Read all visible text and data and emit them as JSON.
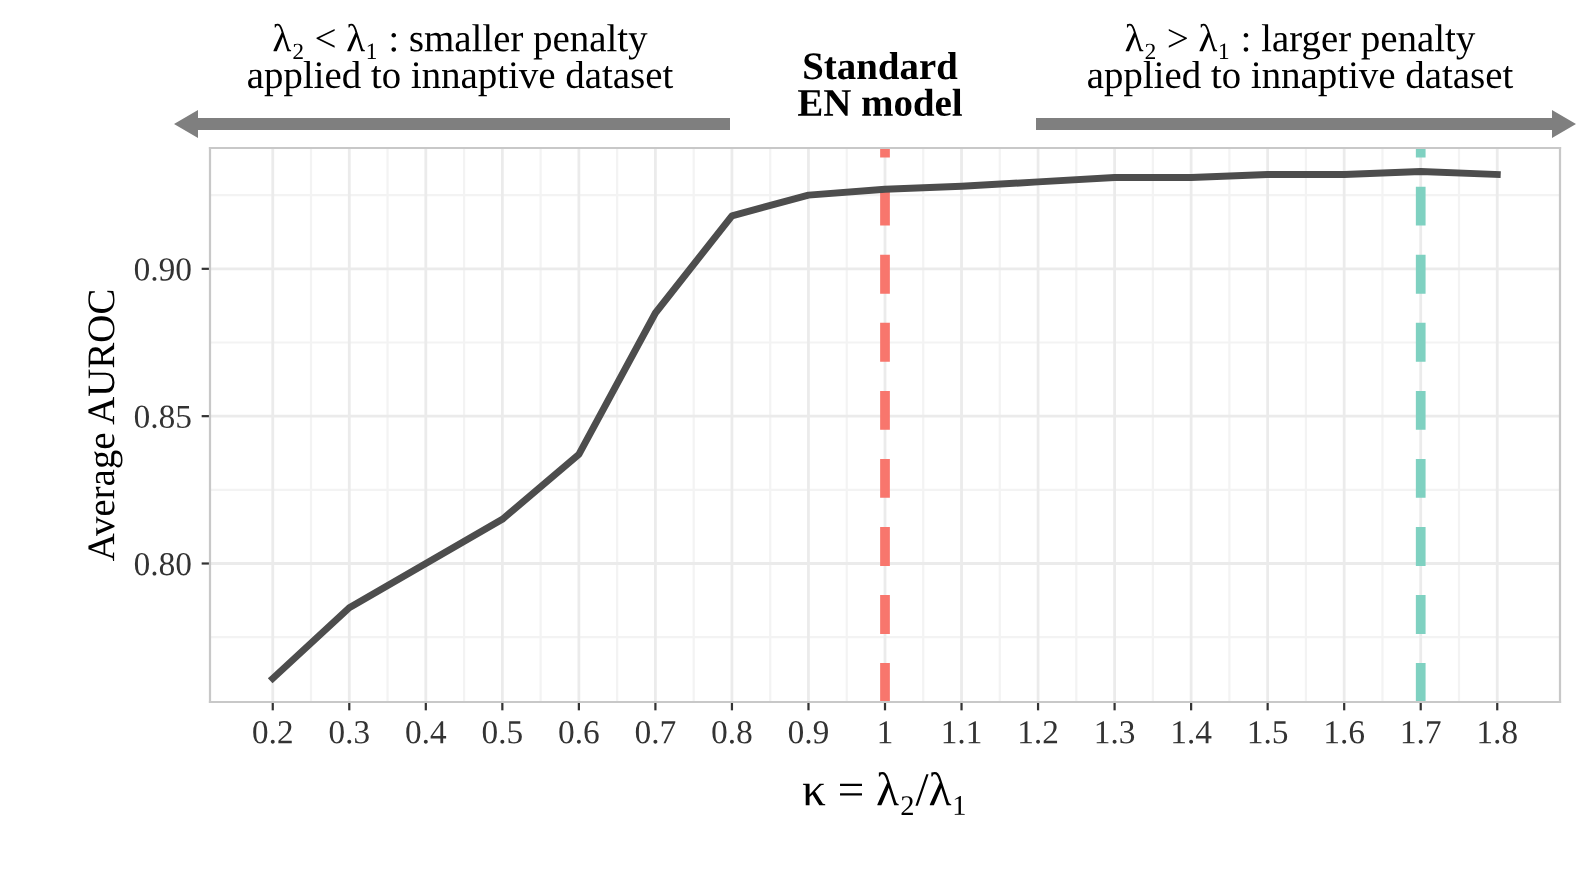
{
  "chart_data": {
    "type": "line",
    "x": [
      0.2,
      0.3,
      0.4,
      0.5,
      0.6,
      0.7,
      0.8,
      0.9,
      1.0,
      1.1,
      1.2,
      1.3,
      1.4,
      1.5,
      1.6,
      1.7,
      1.8
    ],
    "series": [
      {
        "color": "#4d4d4d",
        "values": [
          0.761,
          0.785,
          0.8,
          0.815,
          0.837,
          0.885,
          0.918,
          0.925,
          0.927,
          0.928,
          0.9295,
          0.931,
          0.931,
          0.932,
          0.932,
          0.933,
          0.932
        ]
      }
    ],
    "xlim": [
      0.118,
      1.882
    ],
    "xticks": [
      0.2,
      0.3,
      0.4,
      0.5,
      0.6,
      0.7,
      0.8,
      0.9,
      1,
      1.1,
      1.2,
      1.3,
      1.4,
      1.5,
      1.6,
      1.7,
      1.8
    ],
    "ylim": [
      0.753,
      0.941
    ],
    "yticks": [
      {
        "value": 0.8,
        "label": "0.80"
      },
      {
        "value": 0.85,
        "label": "0.85"
      },
      {
        "value": 0.9,
        "label": "0.90"
      }
    ],
    "xlabel": "κ = λ₂/λ₁",
    "ylabel": "Average AUROC",
    "ref_lines": [
      {
        "axis": "x",
        "value": 1,
        "color": "#f8766d",
        "line_style": "dashed"
      },
      {
        "axis": "x",
        "value": 1.7,
        "color": "#7fd1c1",
        "line_style": "dashed"
      }
    ],
    "annotations": [
      "λ₂ < λ₁ : smaller penalty\napplied to innaptive dataset",
      "Standard\nEN model",
      "λ₂ > λ₁ : larger penalty\napplied to innaptive dataset"
    ],
    "grid": true,
    "marker": "none",
    "line_style": "solid",
    "legend": false
  }
}
